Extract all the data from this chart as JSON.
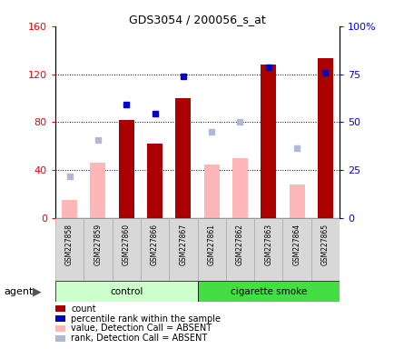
{
  "title": "GDS3054 / 200056_s_at",
  "samples": [
    "GSM227858",
    "GSM227859",
    "GSM227860",
    "GSM227866",
    "GSM227867",
    "GSM227861",
    "GSM227862",
    "GSM227863",
    "GSM227864",
    "GSM227865"
  ],
  "count_values": [
    null,
    null,
    82,
    62,
    100,
    null,
    null,
    128,
    null,
    133
  ],
  "percentile_rank_left": [
    null,
    null,
    95,
    87,
    118,
    null,
    null,
    126,
    null,
    121
  ],
  "absent_value": [
    15,
    46,
    null,
    null,
    null,
    45,
    50,
    null,
    28,
    null
  ],
  "absent_rank": [
    35,
    65,
    null,
    null,
    null,
    72,
    80,
    null,
    58,
    null
  ],
  "ylim_left": [
    0,
    160
  ],
  "ylim_right": [
    0,
    100
  ],
  "yticks_left": [
    0,
    40,
    80,
    120,
    160
  ],
  "ytick_labels_left": [
    "0",
    "40",
    "80",
    "120",
    "160"
  ],
  "yticks_right": [
    0,
    25,
    50,
    75,
    100
  ],
  "ytick_labels_right": [
    "0",
    "25",
    "50",
    "75",
    "100%"
  ],
  "color_count": "#aa0000",
  "color_percentile": "#0000cc",
  "color_absent_value": "#ffb6b6",
  "color_absent_rank": "#b0b8d8",
  "color_control_bg": "#ccffcc",
  "color_smoke_bg": "#44dd44",
  "color_gray_box": "#d8d8d8",
  "legend_items": [
    "count",
    "percentile rank within the sample",
    "value, Detection Call = ABSENT",
    "rank, Detection Call = ABSENT"
  ],
  "legend_colors": [
    "#aa0000",
    "#0000cc",
    "#ffb6b6",
    "#b0b8d8"
  ]
}
